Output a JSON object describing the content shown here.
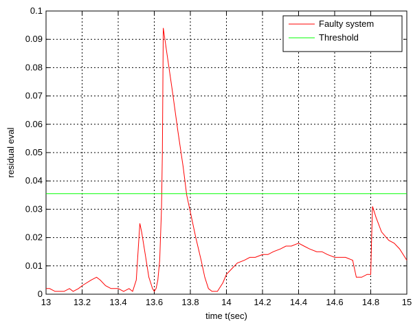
{
  "chart_data": {
    "type": "line",
    "title": "",
    "xlabel": "time t(sec)",
    "ylabel": "residual eval",
    "xlim": [
      13,
      15
    ],
    "ylim": [
      0,
      0.1
    ],
    "xticks": [
      13,
      13.2,
      13.4,
      13.6,
      13.8,
      14,
      14.2,
      14.4,
      14.6,
      14.8,
      15
    ],
    "xtick_labels": [
      "13",
      "13.2",
      "13.4",
      "13.6",
      "13.8",
      "14",
      "14.2",
      "14.4",
      "14.6",
      "14.8",
      "15"
    ],
    "yticks": [
      0,
      0.01,
      0.02,
      0.03,
      0.04,
      0.05,
      0.06,
      0.07,
      0.08,
      0.09,
      0.1
    ],
    "ytick_labels": [
      "0",
      "0.01",
      "0.02",
      "0.03",
      "0.04",
      "0.05",
      "0.06",
      "0.07",
      "0.08",
      "0.09",
      "0.1"
    ],
    "grid": true,
    "grid_style": "dotted",
    "legend_position": "top-right",
    "series": [
      {
        "name": "Faulty system",
        "color": "#ff0000",
        "x": [
          13.0,
          13.02,
          13.05,
          13.08,
          13.1,
          13.13,
          13.15,
          13.18,
          13.2,
          13.25,
          13.28,
          13.3,
          13.33,
          13.36,
          13.4,
          13.43,
          13.46,
          13.48,
          13.5,
          13.52,
          13.53,
          13.55,
          13.57,
          13.58,
          13.59,
          13.6,
          13.61,
          13.62,
          13.63,
          13.64,
          13.645,
          13.65,
          13.67,
          13.7,
          13.73,
          13.76,
          13.78,
          13.8,
          13.83,
          13.86,
          13.88,
          13.9,
          13.92,
          13.95,
          13.98,
          14.0,
          14.03,
          14.06,
          14.1,
          14.13,
          14.16,
          14.2,
          14.23,
          14.26,
          14.3,
          14.33,
          14.36,
          14.4,
          14.43,
          14.46,
          14.5,
          14.53,
          14.56,
          14.6,
          14.63,
          14.66,
          14.7,
          14.72,
          14.75,
          14.78,
          14.8,
          14.805,
          14.81,
          14.83,
          14.86,
          14.9,
          14.93,
          14.96,
          15.0
        ],
        "y": [
          0.002,
          0.002,
          0.001,
          0.001,
          0.001,
          0.002,
          0.001,
          0.002,
          0.003,
          0.005,
          0.006,
          0.005,
          0.003,
          0.002,
          0.002,
          0.001,
          0.002,
          0.001,
          0.005,
          0.025,
          0.022,
          0.014,
          0.006,
          0.004,
          0.002,
          0.001,
          0.002,
          0.005,
          0.012,
          0.03,
          0.05,
          0.094,
          0.085,
          0.072,
          0.058,
          0.045,
          0.035,
          0.029,
          0.02,
          0.012,
          0.006,
          0.002,
          0.001,
          0.001,
          0.004,
          0.007,
          0.009,
          0.011,
          0.012,
          0.013,
          0.013,
          0.014,
          0.014,
          0.015,
          0.016,
          0.017,
          0.017,
          0.018,
          0.017,
          0.016,
          0.015,
          0.015,
          0.014,
          0.013,
          0.013,
          0.013,
          0.012,
          0.006,
          0.006,
          0.007,
          0.007,
          0.02,
          0.031,
          0.027,
          0.022,
          0.019,
          0.018,
          0.016,
          0.012
        ]
      },
      {
        "name": "Threshold",
        "color": "#00ff00",
        "x": [
          13,
          15
        ],
        "y": [
          0.0355,
          0.0355
        ]
      }
    ]
  }
}
